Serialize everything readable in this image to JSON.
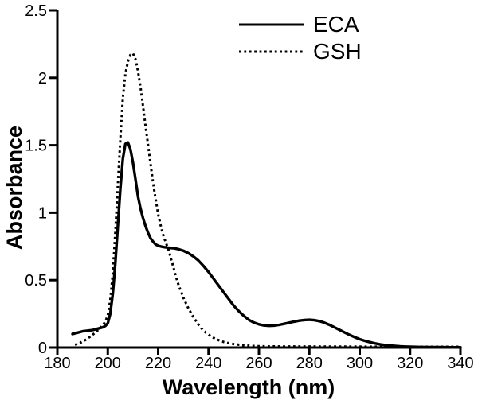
{
  "figure": {
    "background": "#ffffff",
    "ink_color": "#000000"
  },
  "chart_data": {
    "type": "line",
    "title": "",
    "xlabel": "Wavelength (nm)",
    "ylabel": "Absorbance",
    "xlim": [
      180,
      340
    ],
    "ylim": [
      0,
      2.5
    ],
    "x_ticks": [
      180,
      200,
      220,
      240,
      260,
      280,
      300,
      320,
      340
    ],
    "x_tick_labels": [
      "180",
      "200",
      "220",
      "240",
      "260",
      "280",
      "300",
      "320",
      "340"
    ],
    "y_ticks": [
      0,
      0.5,
      1,
      1.5,
      2,
      2.5
    ],
    "y_tick_labels": [
      "0",
      "0.5",
      "1",
      "1.5",
      "2",
      "2.5"
    ],
    "grid": false,
    "legend": {
      "position": "top-right-inside",
      "entries": [
        {
          "label": "ECA",
          "line_style": "solid"
        },
        {
          "label": "GSH",
          "line_style": "dotted"
        }
      ]
    },
    "series": [
      {
        "name": "ECA",
        "line_style": "solid",
        "color": "#000000",
        "peaks": [
          {
            "wavelength_nm": 207,
            "absorbance": 1.52
          },
          {
            "wavelength_nm": 280,
            "absorbance": 0.21
          }
        ],
        "points": [
          [
            186,
            0.1
          ],
          [
            188,
            0.11
          ],
          [
            190,
            0.12
          ],
          [
            192,
            0.125
          ],
          [
            194,
            0.13
          ],
          [
            196,
            0.14
          ],
          [
            198,
            0.15
          ],
          [
            199,
            0.16
          ],
          [
            200,
            0.18
          ],
          [
            201,
            0.25
          ],
          [
            202,
            0.4
          ],
          [
            203,
            0.62
          ],
          [
            204,
            0.9
          ],
          [
            205,
            1.18
          ],
          [
            206,
            1.4
          ],
          [
            207,
            1.51
          ],
          [
            208,
            1.52
          ],
          [
            209,
            1.47
          ],
          [
            210,
            1.37
          ],
          [
            211,
            1.25
          ],
          [
            212,
            1.12
          ],
          [
            213,
            1.03
          ],
          [
            214,
            0.96
          ],
          [
            215,
            0.9
          ],
          [
            216,
            0.85
          ],
          [
            217,
            0.81
          ],
          [
            218,
            0.785
          ],
          [
            219,
            0.765
          ],
          [
            220,
            0.755
          ],
          [
            222,
            0.745
          ],
          [
            224,
            0.74
          ],
          [
            226,
            0.737
          ],
          [
            228,
            0.73
          ],
          [
            230,
            0.718
          ],
          [
            232,
            0.7
          ],
          [
            234,
            0.675
          ],
          [
            236,
            0.645
          ],
          [
            238,
            0.605
          ],
          [
            240,
            0.56
          ],
          [
            242,
            0.51
          ],
          [
            244,
            0.46
          ],
          [
            246,
            0.41
          ],
          [
            248,
            0.36
          ],
          [
            250,
            0.31
          ],
          [
            252,
            0.27
          ],
          [
            254,
            0.235
          ],
          [
            256,
            0.205
          ],
          [
            258,
            0.185
          ],
          [
            260,
            0.172
          ],
          [
            262,
            0.164
          ],
          [
            264,
            0.161
          ],
          [
            266,
            0.163
          ],
          [
            268,
            0.168
          ],
          [
            270,
            0.176
          ],
          [
            272,
            0.184
          ],
          [
            274,
            0.192
          ],
          [
            276,
            0.199
          ],
          [
            278,
            0.204
          ],
          [
            280,
            0.206
          ],
          [
            282,
            0.203
          ],
          [
            284,
            0.196
          ],
          [
            286,
            0.184
          ],
          [
            288,
            0.168
          ],
          [
            290,
            0.15
          ],
          [
            292,
            0.131
          ],
          [
            294,
            0.112
          ],
          [
            296,
            0.094
          ],
          [
            298,
            0.077
          ],
          [
            300,
            0.062
          ],
          [
            302,
            0.05
          ],
          [
            304,
            0.04
          ],
          [
            306,
            0.031
          ],
          [
            308,
            0.024
          ],
          [
            310,
            0.019
          ],
          [
            312,
            0.015
          ],
          [
            314,
            0.012
          ],
          [
            316,
            0.009
          ],
          [
            318,
            0.007
          ],
          [
            320,
            0.006
          ],
          [
            324,
            0.004
          ],
          [
            328,
            0.003
          ],
          [
            332,
            0.003
          ],
          [
            336,
            0.002
          ],
          [
            340,
            0.002
          ]
        ]
      },
      {
        "name": "GSH",
        "line_style": "dotted",
        "color": "#000000",
        "peaks": [
          {
            "wavelength_nm": 210,
            "absorbance": 2.18
          }
        ],
        "points": [
          [
            187,
            0.02
          ],
          [
            189,
            0.035
          ],
          [
            191,
            0.055
          ],
          [
            193,
            0.08
          ],
          [
            195,
            0.11
          ],
          [
            197,
            0.145
          ],
          [
            199,
            0.19
          ],
          [
            200,
            0.24
          ],
          [
            201,
            0.35
          ],
          [
            202,
            0.55
          ],
          [
            203,
            0.85
          ],
          [
            204,
            1.2
          ],
          [
            205,
            1.55
          ],
          [
            206,
            1.85
          ],
          [
            207,
            2.03
          ],
          [
            208,
            2.12
          ],
          [
            209,
            2.17
          ],
          [
            210,
            2.18
          ],
          [
            211,
            2.14
          ],
          [
            212,
            2.05
          ],
          [
            213,
            1.93
          ],
          [
            214,
            1.79
          ],
          [
            215,
            1.64
          ],
          [
            216,
            1.5
          ],
          [
            217,
            1.36
          ],
          [
            218,
            1.22
          ],
          [
            219,
            1.1
          ],
          [
            220,
            0.99
          ],
          [
            221,
            0.905
          ],
          [
            222,
            0.835
          ],
          [
            223,
            0.78
          ],
          [
            224,
            0.73
          ],
          [
            225,
            0.665
          ],
          [
            226,
            0.6
          ],
          [
            227,
            0.53
          ],
          [
            228,
            0.47
          ],
          [
            229,
            0.42
          ],
          [
            230,
            0.37
          ],
          [
            232,
            0.29
          ],
          [
            234,
            0.225
          ],
          [
            236,
            0.17
          ],
          [
            238,
            0.125
          ],
          [
            240,
            0.095
          ],
          [
            242,
            0.072
          ],
          [
            244,
            0.055
          ],
          [
            246,
            0.042
          ],
          [
            248,
            0.033
          ],
          [
            250,
            0.026
          ],
          [
            252,
            0.021
          ],
          [
            254,
            0.017
          ],
          [
            256,
            0.014
          ],
          [
            258,
            0.012
          ],
          [
            260,
            0.01
          ],
          [
            265,
            0.009
          ],
          [
            270,
            0.008
          ],
          [
            280,
            0.008
          ],
          [
            290,
            0.007
          ],
          [
            300,
            0.007
          ],
          [
            310,
            0.006
          ],
          [
            320,
            0.006
          ],
          [
            330,
            0.006
          ],
          [
            340,
            0.006
          ]
        ]
      }
    ]
  }
}
